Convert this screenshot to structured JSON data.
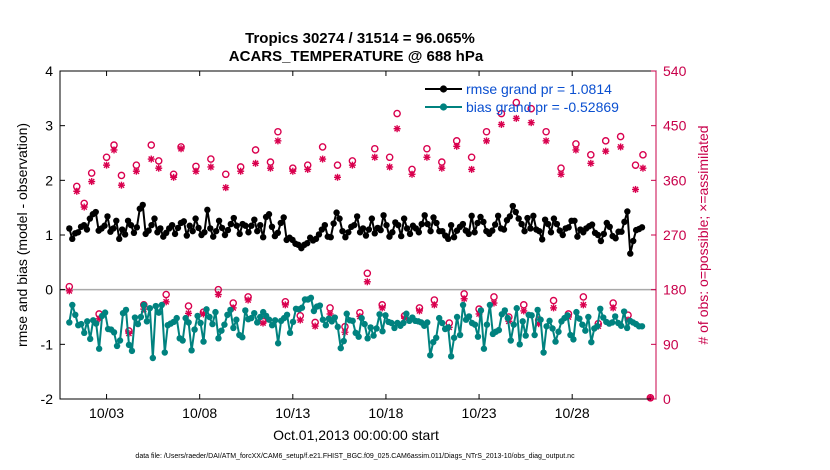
{
  "chart_data": {
    "type": "line",
    "title_line1": "Tropics 30274 / 31514 = 96.065%",
    "title_line2": "ACARS_TEMPERATURE @ 688 hPa",
    "ylabel_left": "rmse and bias (model - observation)",
    "ylabel_right": "# of obs: o=possible; ×=assimilated",
    "xlabel": "Oct.01,2013 00:00:00 start",
    "footer": "data file: /Users/raeder/DAI/ATM_forcXX/CAM6_setup/f.e21.FHIST_BGC.f09_025.CAM6assim.011/Diags_NTrS_2013-10/obs_diag_output.nc",
    "ylim_left": [
      -2,
      4
    ],
    "ylim_right": [
      0,
      540
    ],
    "xlim_days": [
      0.5,
      32.5
    ],
    "left_ticks": [
      "-2",
      "-1",
      "0",
      "1",
      "2",
      "3",
      "4"
    ],
    "right_ticks": [
      "0",
      "90",
      "180",
      "270",
      "360",
      "450",
      "540"
    ],
    "x_tick_labels": [
      "10/03",
      "10/08",
      "10/13",
      "10/18",
      "10/23",
      "10/28"
    ],
    "x_tick_days": [
      3,
      8,
      13,
      18,
      23,
      28
    ],
    "colors": {
      "rmse": "#000000",
      "bias": "#00827f",
      "obs": "#d9004e",
      "zero_line": "#a9a9a9",
      "legend_text": "#0a4fd0",
      "right_axis": "#c8004a"
    },
    "series": [
      {
        "name": "rmse grand pr = 1.0814",
        "marker": "filled-circle",
        "values": [
          1.12,
          0.93,
          1.03,
          1.05,
          1.15,
          1.18,
          1.1,
          1.3,
          1.38,
          1.42,
          1.08,
          1.12,
          1.17,
          1.34,
          1.06,
          1.12,
          1.26,
          0.93,
          1.1,
          1.01,
          1.26,
          1.18,
          1.04,
          1.14,
          1.48,
          1.55,
          1.02,
          1.08,
          1.18,
          1.3,
          1.05,
          1.12,
          0.97,
          1.04,
          1.12,
          1.18,
          1.02,
          1.13,
          1.22,
          1.25,
          0.99,
          1.17,
          1.07,
          1.3,
          1.13,
          1.0,
          1.05,
          1.46,
          1.12,
          0.97,
          1.07,
          1.26,
          1.13,
          1.0,
          1.09,
          1.2,
          1.31,
          1.17,
          1.02,
          1.2,
          1.17,
          1.05,
          1.17,
          1.28,
          1.07,
          1.18,
          0.96,
          1.33,
          1.38,
          1.15,
          0.98,
          1.04,
          1.22,
          1.32,
          0.91,
          0.95,
          0.91,
          0.84,
          0.82,
          0.76,
          0.82,
          0.85,
          0.95,
          0.9,
          0.93,
          1.01,
          1.1,
          1.18,
          0.97,
          0.96,
          1.21,
          1.41,
          1.3,
          1.07,
          0.96,
          1.05,
          1.15,
          1.18,
          1.34,
          1.05,
          1.12,
          0.99,
          1.1,
          1.3,
          1.03,
          1.13,
          1.09,
          1.36,
          1.18,
          0.97,
          1.05,
          1.23,
          1.18,
          0.98,
          1.3,
          1.12,
          1.02,
          1.17,
          1.12,
          1.05,
          1.2,
          1.36,
          1.2,
          1.07,
          1.32,
          1.22,
          1.07,
          1.07,
          0.99,
          0.93,
          1.18,
          0.96,
          1.08,
          1.15,
          1.2,
          1.08,
          1.02,
          1.35,
          1.05,
          1.22,
          1.33,
          1.24,
          1.07,
          1.02,
          1.08,
          1.19,
          1.35,
          1.12,
          1.1,
          1.27,
          1.34,
          1.53,
          1.42,
          1.3,
          1.2,
          1.07,
          1.31,
          1.12,
          1.35,
          1.1,
          1.07,
          0.92,
          1.28,
          1.2,
          1.05,
          1.3,
          1.2,
          1.08,
          1.0,
          1.12,
          1.14,
          1.26,
          1.26,
          0.97,
          1.1,
          1.05,
          1.12,
          1.16,
          1.19,
          1.04,
          1.0,
          0.89,
          1.02,
          1.22,
          1.15,
          0.98,
          0.94,
          1.06,
          1.06,
          1.24,
          1.43,
          0.66,
          0.89,
          1.09,
          1.11,
          1.14
        ]
      },
      {
        "name": "bias grand pr = -0.52869",
        "marker": "filled-circle",
        "values": [
          -0.6,
          -0.28,
          -0.46,
          -0.65,
          -0.63,
          -0.79,
          -0.58,
          -0.9,
          -0.56,
          -0.62,
          -1.08,
          -0.48,
          -0.42,
          -0.72,
          -0.73,
          -0.78,
          -1.03,
          -0.93,
          -0.43,
          -0.37,
          -1.01,
          -1.12,
          -0.51,
          -0.63,
          -0.5,
          -0.28,
          -0.58,
          -0.34,
          -1.25,
          -0.3,
          -0.42,
          -0.28,
          -1.15,
          -0.65,
          -0.62,
          -0.59,
          -0.52,
          -0.89,
          -0.93,
          -0.52,
          -0.6,
          -1.11,
          -0.73,
          -0.48,
          -0.61,
          -0.95,
          -0.36,
          -0.5,
          -0.63,
          -0.41,
          -0.89,
          -0.75,
          -0.64,
          -0.46,
          -0.37,
          -0.7,
          -0.55,
          -0.83,
          -0.87,
          -0.38,
          -0.54,
          -0.52,
          -0.43,
          -0.6,
          -0.5,
          -0.41,
          -0.48,
          -0.55,
          -0.65,
          -0.56,
          -0.98,
          -0.57,
          -0.52,
          -0.46,
          -0.79,
          -0.59,
          -0.35,
          -0.36,
          -0.33,
          -0.18,
          -0.18,
          -0.15,
          -0.39,
          -0.31,
          -0.29,
          -0.55,
          -0.65,
          -0.53,
          -0.58,
          -0.51,
          -0.68,
          -1.07,
          -0.94,
          -0.44,
          -0.56,
          -0.57,
          -0.79,
          -0.86,
          -0.52,
          -0.63,
          -0.89,
          -0.69,
          -0.84,
          -0.71,
          -0.45,
          -0.76,
          -0.47,
          -0.59,
          -0.61,
          -0.7,
          -0.61,
          -0.66,
          -0.61,
          -0.44,
          -0.57,
          -0.51,
          -0.57,
          -0.58,
          -0.6,
          -0.66,
          -0.6,
          -1.2,
          -0.96,
          -0.88,
          -0.52,
          -0.61,
          -0.72,
          -0.69,
          -1.22,
          -0.88,
          -0.5,
          -0.83,
          -0.28,
          -0.55,
          -0.49,
          -0.61,
          -0.64,
          -0.86,
          -0.38,
          -1.08,
          -0.64,
          -0.28,
          -0.81,
          -0.77,
          -0.74,
          -0.45,
          -0.38,
          -0.52,
          -0.93,
          -0.64,
          -0.34,
          -1.0,
          -0.58,
          -0.84,
          -0.46,
          -0.47,
          -0.83,
          -0.37,
          -0.55,
          -1.15,
          -0.67,
          -0.57,
          -0.71,
          -0.95,
          -0.77,
          -0.58,
          -0.52,
          -0.47,
          -0.83,
          -0.91,
          -0.41,
          -0.53,
          -0.64,
          -0.75,
          -0.5,
          -0.96,
          -0.71,
          -0.67,
          -0.35,
          -0.51,
          -0.59,
          -0.62,
          -0.6,
          -0.49,
          -0.61,
          -0.66,
          -0.4,
          -0.7,
          -0.57,
          -0.6,
          -0.63,
          -0.67,
          -0.67
        ]
      }
    ],
    "obs_points": [
      {
        "day": 1.0,
        "possible": 185,
        "assimilated": 178
      },
      {
        "day": 1.4,
        "possible": 350,
        "assimilated": 342
      },
      {
        "day": 1.8,
        "possible": 322,
        "assimilated": 316
      },
      {
        "day": 2.2,
        "possible": 372,
        "assimilated": 358
      },
      {
        "day": 2.6,
        "possible": 140,
        "assimilated": 132
      },
      {
        "day": 3.0,
        "possible": 398,
        "assimilated": 385
      },
      {
        "day": 3.4,
        "possible": 418,
        "assimilated": 410
      },
      {
        "day": 3.8,
        "possible": 368,
        "assimilated": 352
      },
      {
        "day": 4.2,
        "possible": 112,
        "assimilated": 108
      },
      {
        "day": 4.6,
        "possible": 385,
        "assimilated": 375
      },
      {
        "day": 5.0,
        "possible": 155,
        "assimilated": 148
      },
      {
        "day": 5.4,
        "possible": 418,
        "assimilated": 395
      },
      {
        "day": 5.8,
        "possible": 392,
        "assimilated": 380
      },
      {
        "day": 6.2,
        "possible": 172,
        "assimilated": 160
      },
      {
        "day": 6.6,
        "possible": 370,
        "assimilated": 365
      },
      {
        "day": 7.0,
        "possible": 415,
        "assimilated": 412
      },
      {
        "day": 7.4,
        "possible": 153,
        "assimilated": 141
      },
      {
        "day": 7.8,
        "possible": 383,
        "assimilated": 375
      },
      {
        "day": 8.2,
        "possible": 143,
        "assimilated": 140
      },
      {
        "day": 8.6,
        "possible": 395,
        "assimilated": 382
      },
      {
        "day": 9.0,
        "possible": 180,
        "assimilated": 172
      },
      {
        "day": 9.4,
        "possible": 370,
        "assimilated": 348
      },
      {
        "day": 9.8,
        "possible": 158,
        "assimilated": 150
      },
      {
        "day": 10.2,
        "possible": 382,
        "assimilated": 375
      },
      {
        "day": 10.6,
        "possible": 168,
        "assimilated": 163
      },
      {
        "day": 11.0,
        "possible": 410,
        "assimilated": 388
      },
      {
        "day": 11.4,
        "possible": 128,
        "assimilated": 125
      },
      {
        "day": 11.8,
        "possible": 390,
        "assimilated": 380
      },
      {
        "day": 12.2,
        "possible": 440,
        "assimilated": 425
      },
      {
        "day": 12.6,
        "possible": 160,
        "assimilated": 155
      },
      {
        "day": 13.0,
        "possible": 380,
        "assimilated": 375
      },
      {
        "day": 13.4,
        "possible": 137,
        "assimilated": 130
      },
      {
        "day": 13.8,
        "possible": 385,
        "assimilated": 378
      },
      {
        "day": 14.2,
        "possible": 126,
        "assimilated": 120
      },
      {
        "day": 14.6,
        "possible": 415,
        "assimilated": 395
      },
      {
        "day": 15.0,
        "possible": 150,
        "assimilated": 140
      },
      {
        "day": 15.4,
        "possible": 385,
        "assimilated": 365
      },
      {
        "day": 15.8,
        "possible": 119,
        "assimilated": 110
      },
      {
        "day": 16.2,
        "possible": 392,
        "assimilated": 385
      },
      {
        "day": 16.6,
        "possible": 142,
        "assimilated": 136
      },
      {
        "day": 17.0,
        "possible": 207,
        "assimilated": 193
      },
      {
        "day": 17.4,
        "possible": 412,
        "assimilated": 398
      },
      {
        "day": 17.8,
        "possible": 155,
        "assimilated": 150
      },
      {
        "day": 18.2,
        "possible": 398,
        "assimilated": 382
      },
      {
        "day": 18.6,
        "possible": 470,
        "assimilated": 445
      },
      {
        "day": 19.0,
        "possible": 137,
        "assimilated": 133
      },
      {
        "day": 19.4,
        "possible": 378,
        "assimilated": 370
      },
      {
        "day": 19.8,
        "possible": 150,
        "assimilated": 145
      },
      {
        "day": 20.2,
        "possible": 412,
        "assimilated": 398
      },
      {
        "day": 20.6,
        "possible": 163,
        "assimilated": 155
      },
      {
        "day": 21.0,
        "possible": 390,
        "assimilated": 380
      },
      {
        "day": 21.4,
        "possible": 125,
        "assimilated": 118
      },
      {
        "day": 21.8,
        "possible": 425,
        "assimilated": 416
      },
      {
        "day": 22.2,
        "possible": 173,
        "assimilated": 165
      },
      {
        "day": 22.6,
        "possible": 398,
        "assimilated": 378
      },
      {
        "day": 23.0,
        "possible": 148,
        "assimilated": 140
      },
      {
        "day": 23.4,
        "possible": 440,
        "assimilated": 425
      },
      {
        "day": 23.8,
        "possible": 168,
        "assimilated": 158
      },
      {
        "day": 24.2,
        "possible": 470,
        "assimilated": 452
      },
      {
        "day": 24.6,
        "possible": 135,
        "assimilated": 128
      },
      {
        "day": 25.0,
        "possible": 488,
        "assimilated": 462
      },
      {
        "day": 25.4,
        "possible": 155,
        "assimilated": 145
      },
      {
        "day": 25.8,
        "possible": 478,
        "assimilated": 455
      },
      {
        "day": 26.2,
        "possible": 130,
        "assimilated": 124
      },
      {
        "day": 26.6,
        "possible": 440,
        "assimilated": 425
      },
      {
        "day": 27.0,
        "possible": 162,
        "assimilated": 150
      },
      {
        "day": 27.4,
        "possible": 380,
        "assimilated": 370
      },
      {
        "day": 27.8,
        "possible": 140,
        "assimilated": 135
      },
      {
        "day": 28.2,
        "possible": 420,
        "assimilated": 410
      },
      {
        "day": 28.6,
        "possible": 168,
        "assimilated": 155
      },
      {
        "day": 29.0,
        "possible": 402,
        "assimilated": 388
      },
      {
        "day": 29.4,
        "possible": 124,
        "assimilated": 120
      },
      {
        "day": 29.8,
        "possible": 425,
        "assimilated": 408
      },
      {
        "day": 30.2,
        "possible": 158,
        "assimilated": 150
      },
      {
        "day": 30.6,
        "possible": 432,
        "assimilated": 415
      },
      {
        "day": 31.0,
        "possible": 138,
        "assimilated": 130
      },
      {
        "day": 31.4,
        "possible": 385,
        "assimilated": 345
      },
      {
        "day": 31.8,
        "possible": 402,
        "assimilated": 380
      },
      {
        "day": 32.2,
        "possible": 2,
        "assimilated": 2
      }
    ]
  }
}
